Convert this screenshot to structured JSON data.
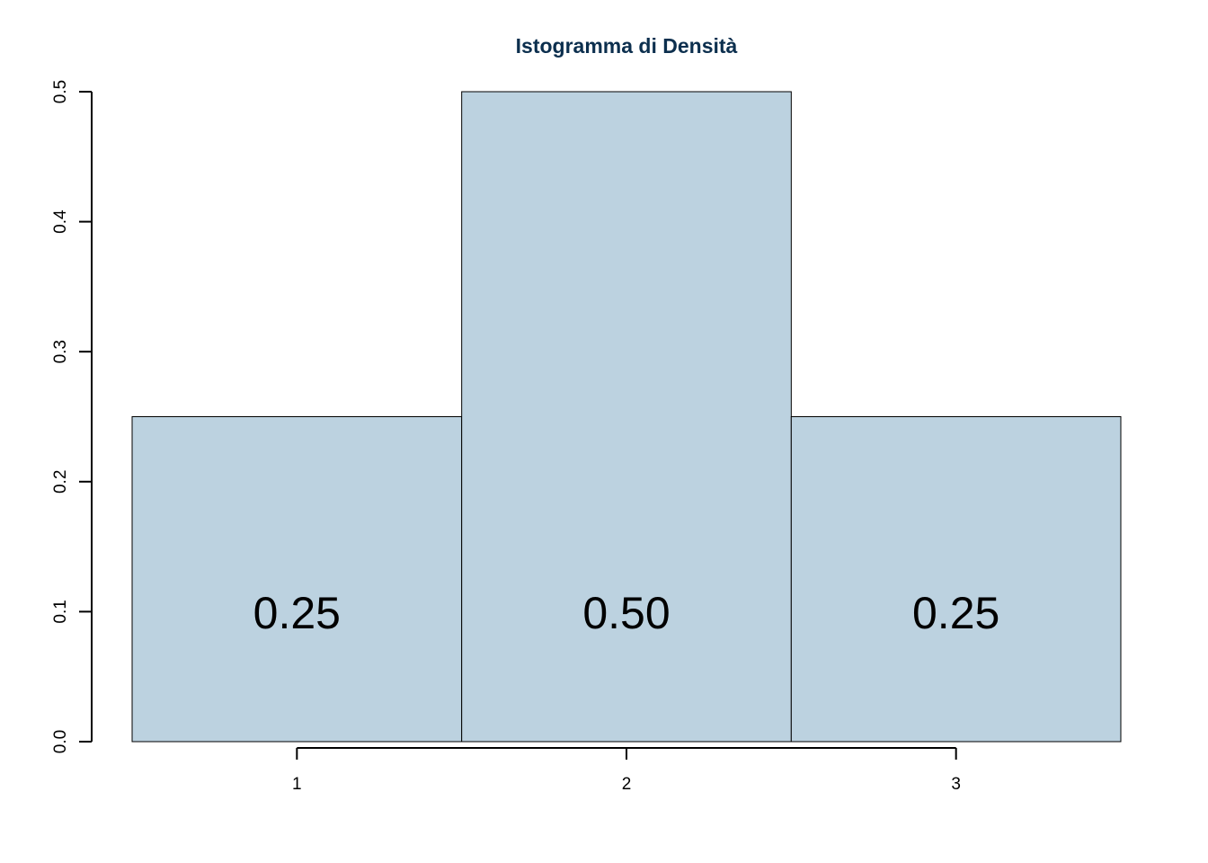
{
  "chart_data": {
    "type": "bar",
    "title": "Istogramma di Densità",
    "xlabel": "",
    "ylabel": "",
    "categories": [
      "1",
      "2",
      "3"
    ],
    "values": [
      0.25,
      0.5,
      0.25
    ],
    "data_labels": [
      "0.25",
      "0.50",
      "0.25"
    ],
    "x_ticks": [
      "1",
      "2",
      "3"
    ],
    "y_ticks": [
      "0.0",
      "0.1",
      "0.2",
      "0.3",
      "0.4",
      "0.5"
    ],
    "ylim": [
      0,
      0.5
    ],
    "grid": false,
    "legend": "none",
    "colors": {
      "bar_fill": "#bcd2e0",
      "bar_stroke": "#000000",
      "title": "#0c2f4e",
      "axis": "#000000"
    }
  }
}
